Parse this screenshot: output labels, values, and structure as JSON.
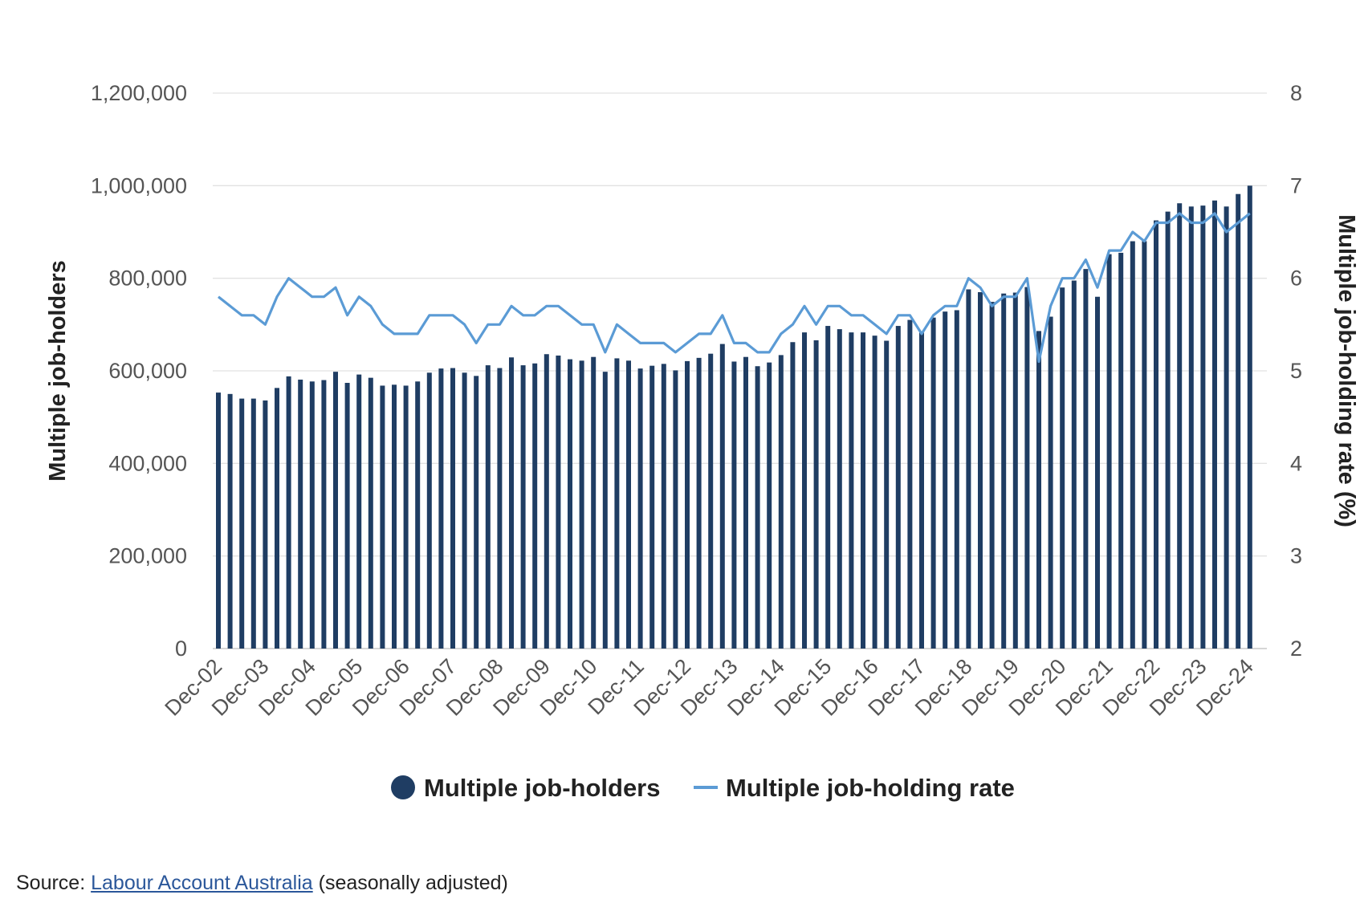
{
  "chart_data": {
    "type": "bar+line",
    "title": "",
    "x_tick_labels": [
      "Dec-02",
      "Dec-03",
      "Dec-04",
      "Dec-05",
      "Dec-06",
      "Dec-07",
      "Dec-08",
      "Dec-09",
      "Dec-10",
      "Dec-11",
      "Dec-12",
      "Dec-13",
      "Dec-14",
      "Dec-15",
      "Dec-16",
      "Dec-17",
      "Dec-18",
      "Dec-19",
      "Dec-20",
      "Dec-21",
      "Dec-22",
      "Dec-23",
      "Dec-24"
    ],
    "x_start": "Dec-02",
    "x_frequency": "quarterly",
    "y_left": {
      "label": "Multiple job-holders",
      "lim": [
        0,
        1200000
      ],
      "ticks": [
        0,
        200000,
        400000,
        600000,
        800000,
        1000000,
        1200000
      ],
      "tick_labels": [
        "0",
        "200,000",
        "400,000",
        "600,000",
        "800,000",
        "1,000,000",
        "1,200,000"
      ]
    },
    "y_right": {
      "label": "Multiple job-holding rate (%)",
      "lim": [
        2,
        8
      ],
      "ticks": [
        2,
        3,
        4,
        5,
        6,
        7,
        8
      ],
      "tick_labels": [
        "2",
        "3",
        "4",
        "5",
        "6",
        "7",
        "8"
      ]
    },
    "grid": true,
    "legend_position": "bottom-center",
    "series": [
      {
        "name": "Multiple job-holders",
        "type": "bar",
        "axis": "left",
        "color": "#1f3d63",
        "values": [
          553000,
          550000,
          540000,
          540000,
          536000,
          563000,
          588000,
          581000,
          577000,
          580000,
          598000,
          574000,
          592000,
          585000,
          568000,
          570000,
          568000,
          577000,
          596000,
          605000,
          606000,
          596000,
          589000,
          612000,
          606000,
          629000,
          612000,
          616000,
          636000,
          633000,
          625000,
          622000,
          630000,
          598000,
          627000,
          622000,
          605000,
          611000,
          615000,
          601000,
          621000,
          628000,
          637000,
          658000,
          620000,
          630000,
          610000,
          618000,
          634000,
          662000,
          683000,
          666000,
          697000,
          690000,
          683000,
          683000,
          676000,
          665000,
          697000,
          710000,
          684000,
          715000,
          728000,
          731000,
          776000,
          770000,
          749000,
          767000,
          769000,
          781000,
          686000,
          717000,
          780000,
          795000,
          820000,
          760000,
          852000,
          855000,
          880000,
          880000,
          925000,
          944000,
          962000,
          955000,
          957000,
          968000,
          955000,
          982000,
          1000000
        ]
      },
      {
        "name": "Multiple job-holding rate",
        "type": "line",
        "axis": "right",
        "color": "#5b9bd5",
        "values": [
          5.8,
          5.7,
          5.6,
          5.6,
          5.5,
          5.8,
          6.0,
          5.9,
          5.8,
          5.8,
          5.9,
          5.6,
          5.8,
          5.7,
          5.5,
          5.4,
          5.4,
          5.4,
          5.6,
          5.6,
          5.6,
          5.5,
          5.3,
          5.5,
          5.5,
          5.7,
          5.6,
          5.6,
          5.7,
          5.7,
          5.6,
          5.5,
          5.5,
          5.2,
          5.5,
          5.4,
          5.3,
          5.3,
          5.3,
          5.2,
          5.3,
          5.4,
          5.4,
          5.6,
          5.3,
          5.3,
          5.2,
          5.2,
          5.4,
          5.5,
          5.7,
          5.5,
          5.7,
          5.7,
          5.6,
          5.6,
          5.5,
          5.4,
          5.6,
          5.6,
          5.4,
          5.6,
          5.7,
          5.7,
          6.0,
          5.9,
          5.7,
          5.8,
          5.8,
          6.0,
          5.1,
          5.7,
          6.0,
          6.0,
          6.2,
          5.9,
          6.3,
          6.3,
          6.5,
          6.4,
          6.6,
          6.6,
          6.7,
          6.6,
          6.6,
          6.7,
          6.5,
          6.6,
          6.7
        ]
      }
    ]
  },
  "source": {
    "prefix": "Source: ",
    "link_text": "Labour Account Australia",
    "suffix": " (seasonally adjusted)"
  }
}
